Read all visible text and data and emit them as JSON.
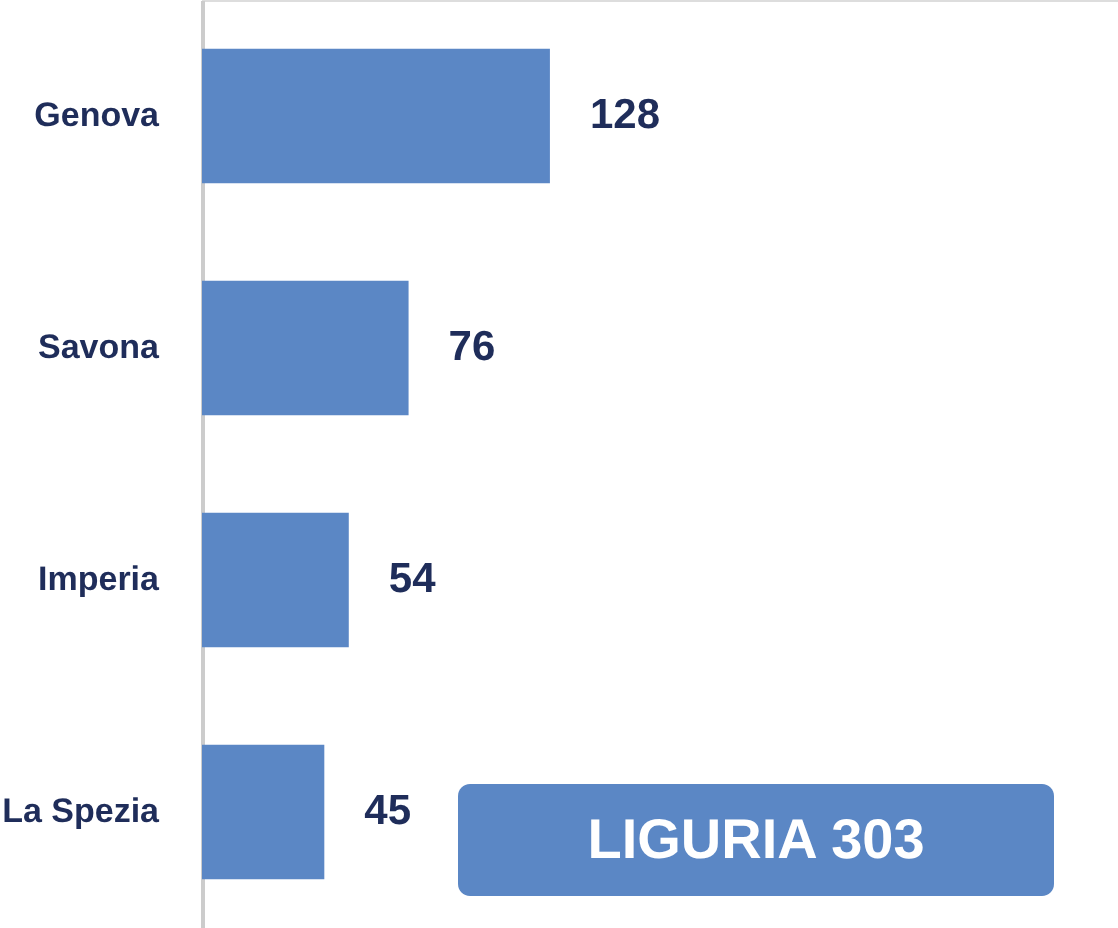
{
  "chart_data": {
    "type": "bar",
    "orientation": "horizontal",
    "categories": [
      "Genova",
      "Savona",
      "Imperia",
      "La Spezia"
    ],
    "values": [
      128,
      76,
      54,
      45
    ],
    "color": "#5b87c5",
    "data_labels": true,
    "xlim": [
      0,
      337
    ],
    "grid": false,
    "annotations": [
      "LIGURIA  303"
    ]
  }
}
